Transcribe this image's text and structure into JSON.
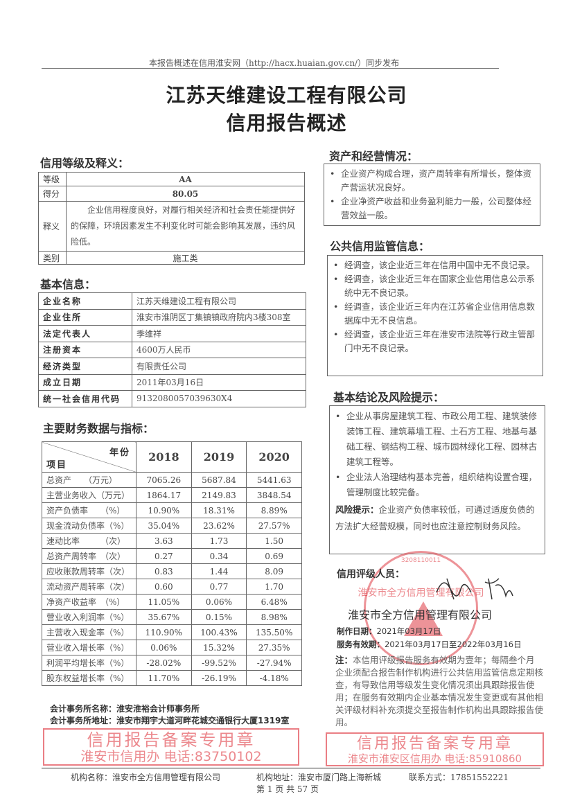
{
  "header": {
    "notice": "本报告概述在信用淮安网（http://hacx.huaian.gov.cn/）同步发布"
  },
  "title": {
    "line1": "江苏天维建设工程有限公司",
    "line2": "信用报告概述"
  },
  "rating": {
    "section_title": "信用等级及释义：",
    "rows": [
      {
        "label": "等级",
        "value": "AA"
      },
      {
        "label": "得分",
        "value": "80.05"
      },
      {
        "label": "释义",
        "value": "企业信用程度良好，对履行相关经济和社会责任能提供好的保障，环境因素发生不利变化时可能会影响其发展，违约风险低。"
      },
      {
        "label": "类别",
        "value": "施工类"
      }
    ]
  },
  "basic": {
    "section_title": "基本信息：",
    "rows": [
      {
        "label": "企业名称",
        "value": "江苏天维建设工程有限公司"
      },
      {
        "label": "企业住所",
        "value": "淮安市淮阴区丁集镇镇政府院内3楼308室"
      },
      {
        "label": "法定代表人",
        "value": "季维祥"
      },
      {
        "label": "注册资本",
        "value": "4600万人民币"
      },
      {
        "label": "经济类型",
        "value": "有限责任公司"
      },
      {
        "label": "成立日期",
        "value": "2011年03月16日"
      },
      {
        "label": "统一社会信用代码",
        "value": "9132080057039630X4"
      }
    ]
  },
  "finance": {
    "section_title": "主要财务数据与指标：",
    "header_year": "年份",
    "header_item": "项目",
    "years": [
      "2018",
      "2019",
      "2020"
    ],
    "rows": [
      {
        "name": "总资产　　（万元）",
        "v": [
          "7065.26",
          "5687.84",
          "5441.63"
        ]
      },
      {
        "name": "主营业务收入（万元）",
        "v": [
          "1864.17",
          "2149.83",
          "3848.54"
        ]
      },
      {
        "name": "资产负债率　　（%）",
        "v": [
          "10.90%",
          "18.31%",
          "8.89%"
        ]
      },
      {
        "name": "现金流动负债率（%）",
        "v": [
          "35.04%",
          "23.62%",
          "27.57%"
        ]
      },
      {
        "name": "速动比率　　　（次）",
        "v": [
          "3.63",
          "1.73",
          "1.50"
        ]
      },
      {
        "name": "总资产周转率　（次）",
        "v": [
          "0.27",
          "0.34",
          "0.69"
        ]
      },
      {
        "name": "应收账款周转率（次）",
        "v": [
          "0.83",
          "1.44",
          "8.09"
        ]
      },
      {
        "name": "流动资产周转率（次）",
        "v": [
          "0.60",
          "0.77",
          "1.70"
        ]
      },
      {
        "name": "净资产收益率　（%）",
        "v": [
          "11.05%",
          "0.06%",
          "6.48%"
        ]
      },
      {
        "name": "营业收入利润率（%）",
        "v": [
          "35.67%",
          "0.15%",
          "8.98%"
        ]
      },
      {
        "name": "主营收入现金率（%）",
        "v": [
          "110.90%",
          "100.43%",
          "135.50%"
        ]
      },
      {
        "name": "营业收入增长率（%）",
        "v": [
          "0.06%",
          "15.32%",
          "27.35%"
        ]
      },
      {
        "name": "利润平均增长率（%）",
        "v": [
          "-28.02%",
          "-99.52%",
          "-27.94%"
        ]
      },
      {
        "name": "股东权益增长率（%）",
        "v": [
          "11.70%",
          "-26.19%",
          "-4.18%"
        ]
      }
    ],
    "firm_name": "会计事务所名称：淮安淮裕会计师事务所",
    "firm_address": "会计事务所地址：淮安市翔宇大道河畔花城交通银行大厦1319室"
  },
  "assets": {
    "section_title": "资产和经营情况：",
    "items": [
      "企业资产构成合理，资产周转率有所增长，整体资产营运状况良好。",
      "企业净资产收益和业务盈利能力一般，公司整体经营效益一般。"
    ]
  },
  "public": {
    "section_title": "公共信用监管信息：",
    "items": [
      "经调查，该企业近三年在信用中国中无不良记录。",
      "经调查，该企业近三年在国家企业信用信息公示系统中无不良记录。",
      "经调查，该企业近三年内在江苏省企业信用信息数据库中无不良信息。",
      "经调查，该企业近三年在淮安市法院等行政主管部门中无不良记录。"
    ]
  },
  "conclusion": {
    "section_title": "基本结论及风险提示：",
    "items": [
      "企业从事房屋建筑工程、市政公用工程、建筑装修装饰工程、建筑幕墙工程、土石方工程、地基与基础工程、钢结构工程、城市园林绿化工程、园林古建筑工程等。",
      "企业法人治理结构基本完善，组织结构设置合理，管理制度比较完备。"
    ],
    "risk_label": "风险提示：",
    "risk_text": "企业资产负债率较低，可通过适度负债的方法扩大经营规模，同时也应注意控制财务风险。"
  },
  "raters": {
    "label": "信用评级人员：",
    "company": "淮安市全方信用管理有限公司",
    "made_label": "制作日期：",
    "made_date": "2021年03月17日",
    "valid_label": "服务有效期：",
    "valid_range": "2021年03月17日至2022年03月16日",
    "note_label": "注：",
    "note_text": "本信用评级报告服务有效期为壹年；每隔叁个月企业须配合报告制作机构进行公共信用监管信息定期核查，有导致信用等级发生变化情况须出具跟踪报告使用；在服务有效期内企业基本情况发生变更或有其他相关评级材料补充须提交至报告制作机构出具跟踪报告使用。"
  },
  "stamps": {
    "filing1": {
      "line1": "信用报告备案专用章",
      "line2": "淮安市淮安区信用办 电话:85910860"
    },
    "filing2": {
      "line1": "信用报告备案专用章",
      "line2": "淮安市信用办 电话:83750102"
    },
    "seal": {
      "text": "淮安市全方信用管理有限公司",
      "code": "3208110011"
    },
    "color": "#dc2832"
  },
  "footer": {
    "org_name": "机构名称：淮安市全方信用管理有限公司",
    "org_address": "机构地址：淮安市厦门路上海新城",
    "contact": "联系方式：17851552221",
    "page": "第 1 页 共 57 页"
  }
}
